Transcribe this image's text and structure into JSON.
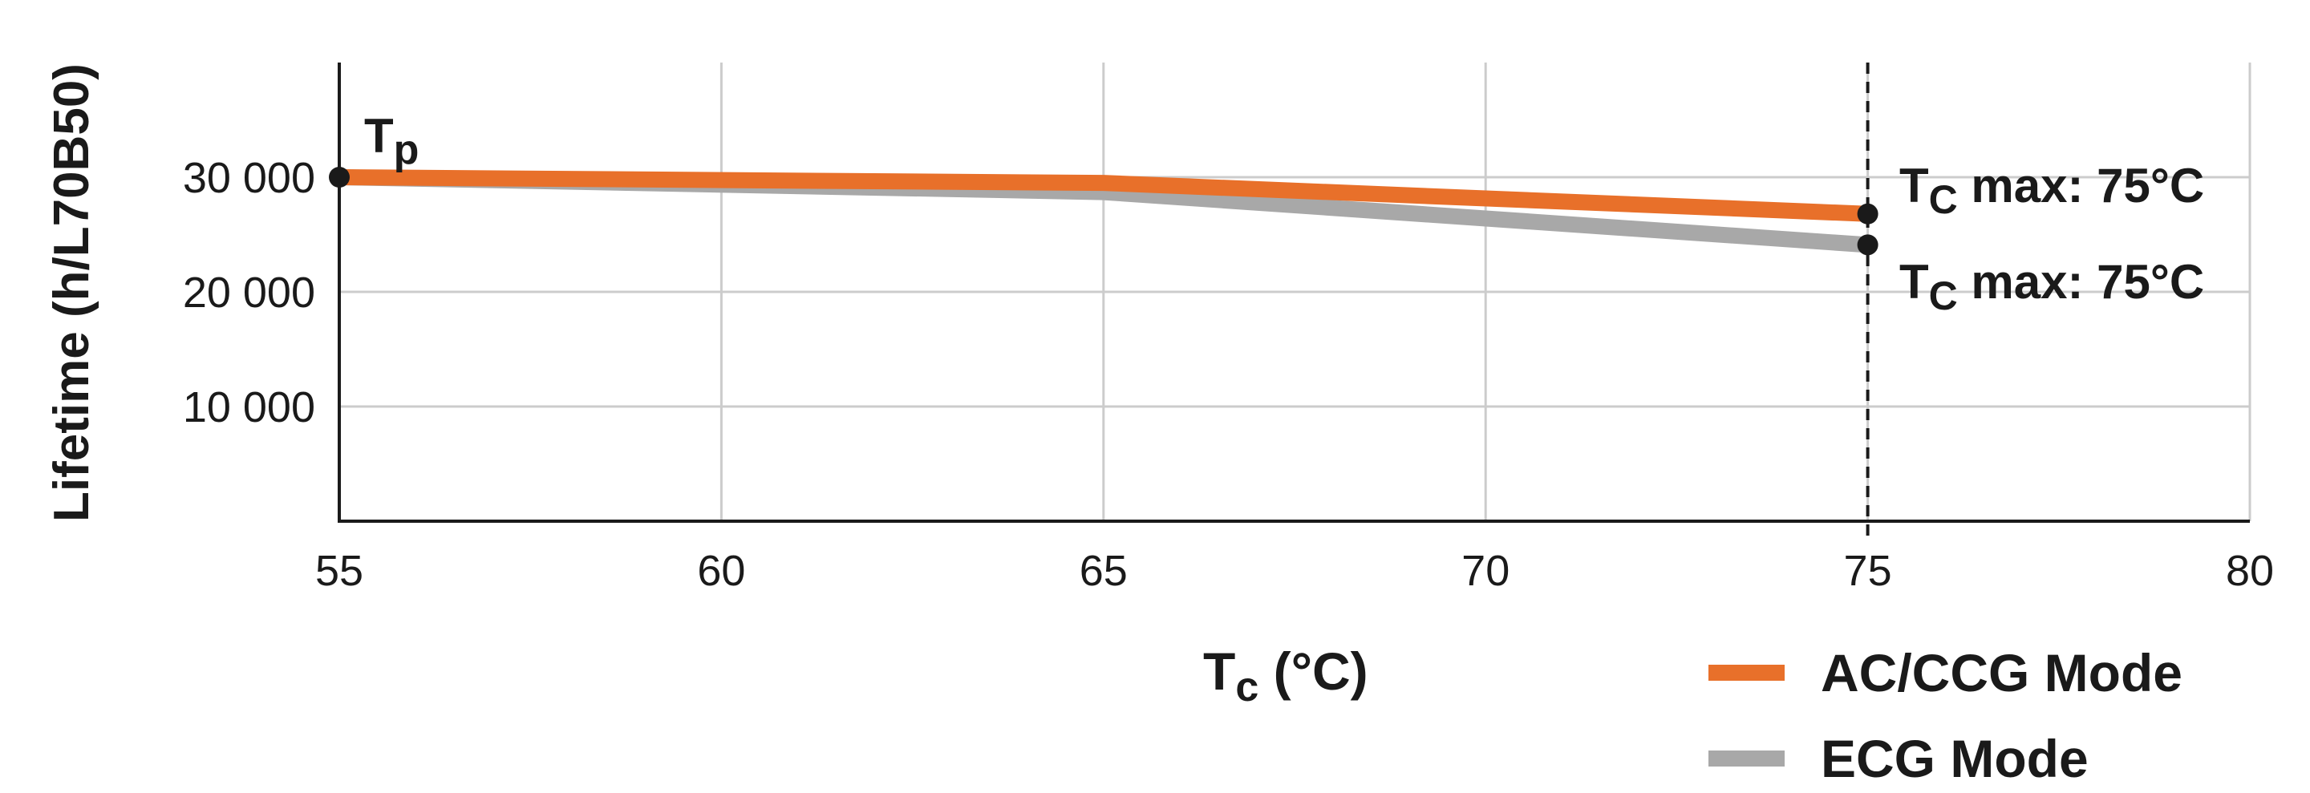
{
  "chart_data": {
    "type": "line",
    "xlabel_main": "T",
    "xlabel_sub": "c",
    "xlabel_rest": " (°C)",
    "ylabel": "Lifetime (h/L70B50)",
    "x_ticks": [
      "55",
      "60",
      "65",
      "70",
      "75",
      "80"
    ],
    "x_tick_values": [
      55,
      60,
      65,
      70,
      75,
      80
    ],
    "y_ticks": [
      "10 000",
      "20 000",
      "30 000"
    ],
    "y_tick_values": [
      10000,
      20000,
      30000
    ],
    "xlim": [
      55,
      80
    ],
    "ylim": [
      0,
      40000
    ],
    "grid": true,
    "legend_position": "bottom-right",
    "series": [
      {
        "name": "AC/CCG Mode",
        "color": "#e8702a",
        "x": [
          55,
          65,
          75
        ],
        "y": [
          30000,
          29500,
          26800
        ]
      },
      {
        "name": "ECG Mode",
        "color": "#a8a8a8",
        "x": [
          55,
          65,
          75
        ],
        "y": [
          30000,
          28700,
          24100
        ]
      }
    ],
    "annotations": {
      "tp": {
        "main": "T",
        "sub": "p",
        "x": 55,
        "y": 30000
      },
      "tc_max_1": {
        "main": "T",
        "sub": "C",
        "rest": " max: 75°C",
        "x": 75,
        "y": 26800
      },
      "tc_max_2": {
        "main": "T",
        "sub": "C",
        "rest": " max: 75°C",
        "x": 75,
        "y": 24100
      },
      "vline_x": 75
    }
  }
}
